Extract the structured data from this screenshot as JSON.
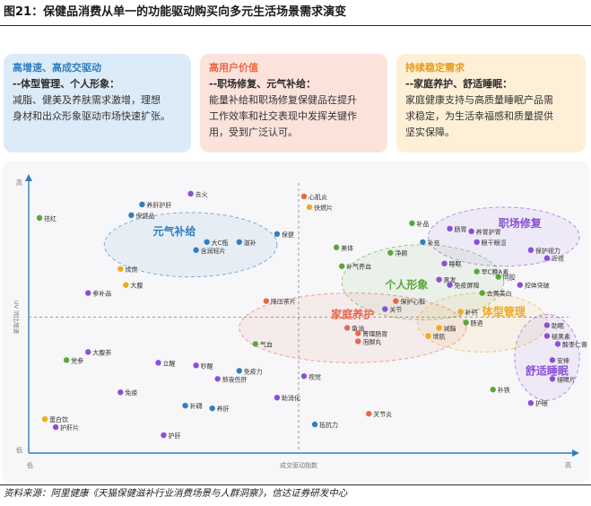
{
  "header": {
    "title": "图21：保健品消费从单一的功能驱动购买向多元生活场景需求演变"
  },
  "cards": [
    {
      "title": "高增速、高成交驱动",
      "subtitle": "--体型管理、个人形象：",
      "desc": [
        "减脂、健美及养肤需求激增，理想",
        "身材和出众形象驱动市场快速扩张。"
      ],
      "bg": "#dcebf8",
      "accent": "#2f7fc1"
    },
    {
      "title": "高用户价值",
      "subtitle": "--职场修复、元气补给：",
      "desc": [
        "能量补给和职场修复保健品在提升",
        "工作效率和社交表现中发挥关键作",
        "用，受到广泛认可。"
      ],
      "bg": "#fbe3dc",
      "accent": "#e8684a"
    },
    {
      "title": "持续稳定需求",
      "subtitle": "--家庭养护、舒适睡眠：",
      "desc": [
        "家庭健康支持与高质量睡眠产品需",
        "求稳定，为生活幸福感和质量提供",
        "坚实保障。"
      ],
      "bg": "#fdf0d7",
      "accent": "#e89a1a"
    }
  ],
  "footer": {
    "source": "资料来源：阿里健康《天猫保健滋补行业消费场景与人群洞察》，信达证券研发中心"
  },
  "chart_data": {
    "type": "scatter",
    "xlabel": "成交驱动指数",
    "ylabel": "UV 同比增速",
    "x_low": "低",
    "x_high": "高",
    "y_low": "低",
    "y_high": "高",
    "xlim": [
      0,
      100
    ],
    "ylim": [
      0,
      100
    ],
    "colors": {
      "green": "#5aa83c",
      "blue": "#2f7fc1",
      "purple": "#8a4fd8",
      "red": "#e8684a",
      "orange": "#f2a91c"
    },
    "clusters": [
      {
        "name": "元气补给",
        "color": "#2f7fc1",
        "cx": 30,
        "cy": 77,
        "rx": 16,
        "ry": 12,
        "lx": 27,
        "ly": 82
      },
      {
        "name": "职场修复",
        "color": "#8a4fd8",
        "cx": 88,
        "cy": 80,
        "rx": 14,
        "ry": 11,
        "lx": 91,
        "ly": 85
      },
      {
        "name": "个人形象",
        "color": "#5aa83c",
        "cx": 73,
        "cy": 63,
        "rx": 15,
        "ry": 14,
        "lx": 70,
        "ly": 62
      },
      {
        "name": "家庭养护",
        "color": "#e8684a",
        "cx": 60,
        "cy": 46,
        "rx": 21,
        "ry": 13,
        "lx": 60,
        "ly": 51
      },
      {
        "name": "体型管理",
        "color": "#f2a91c",
        "cx": 84,
        "cy": 48,
        "rx": 12,
        "ry": 11,
        "lx": 88,
        "ly": 52
      },
      {
        "name": "舒适睡眠",
        "color": "#8a4fd8",
        "cx": 96,
        "cy": 35,
        "rx": 6,
        "ry": 16,
        "lx": 96,
        "ly": 30
      }
    ],
    "points": [
      {
        "name": "祛红",
        "x": 2,
        "y": 87,
        "c": "green"
      },
      {
        "name": "养肝护肝",
        "x": 21,
        "y": 92,
        "c": "blue"
      },
      {
        "name": "去火",
        "x": 30,
        "y": 96,
        "c": "purple"
      },
      {
        "name": "心肌炎",
        "x": 51,
        "y": 95,
        "c": "red"
      },
      {
        "name": "快燃片",
        "x": 52,
        "y": 91,
        "c": "orange"
      },
      {
        "name": "保健品",
        "x": 19,
        "y": 88,
        "c": "blue"
      },
      {
        "name": "补品",
        "x": 71,
        "y": 85,
        "c": "green"
      },
      {
        "name": "肠胃",
        "x": 78,
        "y": 83,
        "c": "purple"
      },
      {
        "name": "养胃护胃",
        "x": 82,
        "y": 82,
        "c": "purple"
      },
      {
        "name": "补充",
        "x": 73,
        "y": 78,
        "c": "blue"
      },
      {
        "name": "眼干眼涩",
        "x": 83,
        "y": 78,
        "c": "purple"
      },
      {
        "name": "保健",
        "x": 46,
        "y": 81,
        "c": "blue"
      },
      {
        "name": "大C瓶",
        "x": 33,
        "y": 78,
        "c": "blue"
      },
      {
        "name": "滋补",
        "x": 39,
        "y": 78,
        "c": "blue"
      },
      {
        "name": "含润轻片",
        "x": 31,
        "y": 75,
        "c": "blue"
      },
      {
        "name": "美体",
        "x": 57,
        "y": 76,
        "c": "green"
      },
      {
        "name": "净颜",
        "x": 67,
        "y": 74,
        "c": "green"
      },
      {
        "name": "保护视力",
        "x": 93,
        "y": 75,
        "c": "purple"
      },
      {
        "name": "近视",
        "x": 96,
        "y": 72,
        "c": "purple"
      },
      {
        "name": "补气养血",
        "x": 58,
        "y": 69,
        "c": "green"
      },
      {
        "name": "睡眠",
        "x": 77,
        "y": 70,
        "c": "purple"
      },
      {
        "name": "早C晚A素",
        "x": 83,
        "y": 67,
        "c": "green"
      },
      {
        "name": "成虎",
        "x": 17,
        "y": 68,
        "c": "orange"
      },
      {
        "name": "黑发",
        "x": 76,
        "y": 64,
        "c": "purple"
      },
      {
        "name": "同胶",
        "x": 87,
        "y": 65,
        "c": "green"
      },
      {
        "name": "免疫屏障",
        "x": 78,
        "y": 62,
        "c": "purple"
      },
      {
        "name": "控体突破",
        "x": 91,
        "y": 62,
        "c": "purple"
      },
      {
        "name": "大腹",
        "x": 18,
        "y": 62,
        "c": "orange"
      },
      {
        "name": "参补品",
        "x": 11,
        "y": 59,
        "c": "purple"
      },
      {
        "name": "去黄美白",
        "x": 84,
        "y": 59,
        "c": "green"
      },
      {
        "name": "降压茶片",
        "x": 44,
        "y": 56,
        "c": "red"
      },
      {
        "name": "保护心脏",
        "x": 68,
        "y": 56,
        "c": "red"
      },
      {
        "name": "关节",
        "x": 66,
        "y": 53,
        "c": "purple"
      },
      {
        "name": "补钙",
        "x": 80,
        "y": 52,
        "c": "orange"
      },
      {
        "name": "肠道",
        "x": 81,
        "y": 48,
        "c": "green"
      },
      {
        "name": "助眠",
        "x": 96,
        "y": 47,
        "c": "purple"
      },
      {
        "name": "鱼油",
        "x": 59,
        "y": 46,
        "c": "red"
      },
      {
        "name": "菁理肠胃",
        "x": 61,
        "y": 44,
        "c": "red"
      },
      {
        "name": "减脂",
        "x": 76,
        "y": 46,
        "c": "orange"
      },
      {
        "name": "褪黑素",
        "x": 96,
        "y": 43,
        "c": "purple"
      },
      {
        "name": "增肌",
        "x": 74,
        "y": 43,
        "c": "orange"
      },
      {
        "name": "泡脚丸",
        "x": 61,
        "y": 41,
        "c": "red"
      },
      {
        "name": "酸枣仁膏",
        "x": 98,
        "y": 40,
        "c": "purple"
      },
      {
        "name": "气血",
        "x": 42,
        "y": 40,
        "c": "green"
      },
      {
        "name": "大腹茶",
        "x": 11,
        "y": 37,
        "c": "purple"
      },
      {
        "name": "党参",
        "x": 7,
        "y": 34,
        "c": "green"
      },
      {
        "name": "立醒",
        "x": 24,
        "y": 33,
        "c": "purple"
      },
      {
        "name": "安神",
        "x": 97,
        "y": 34,
        "c": "purple"
      },
      {
        "name": "秒醒",
        "x": 31,
        "y": 32,
        "c": "purple"
      },
      {
        "name": "免疫力",
        "x": 39,
        "y": 30,
        "c": "blue"
      },
      {
        "name": "熬夜伤肝",
        "x": 35,
        "y": 27,
        "c": "purple"
      },
      {
        "name": "视觉",
        "x": 51,
        "y": 28,
        "c": "purple"
      },
      {
        "name": "褪眼片",
        "x": 97,
        "y": 27,
        "c": "purple"
      },
      {
        "name": "补铁",
        "x": 86,
        "y": 23,
        "c": "green"
      },
      {
        "name": "免疫",
        "x": 17,
        "y": 22,
        "c": "purple"
      },
      {
        "name": "助消化",
        "x": 46,
        "y": 20,
        "c": "purple"
      },
      {
        "name": "补礴",
        "x": 29,
        "y": 17,
        "c": "blue"
      },
      {
        "name": "养肝",
        "x": 34,
        "y": 16,
        "c": "blue"
      },
      {
        "name": "护眼",
        "x": 93,
        "y": 18,
        "c": "purple"
      },
      {
        "name": "关节炎",
        "x": 63,
        "y": 14,
        "c": "red"
      },
      {
        "name": "蛋白饮",
        "x": 3,
        "y": 12,
        "c": "orange"
      },
      {
        "name": "抵抗力",
        "x": 53,
        "y": 10,
        "c": "blue"
      },
      {
        "name": "护肝片",
        "x": 5,
        "y": 9,
        "c": "purple"
      },
      {
        "name": "护肝",
        "x": 25,
        "y": 6,
        "c": "purple"
      }
    ]
  }
}
